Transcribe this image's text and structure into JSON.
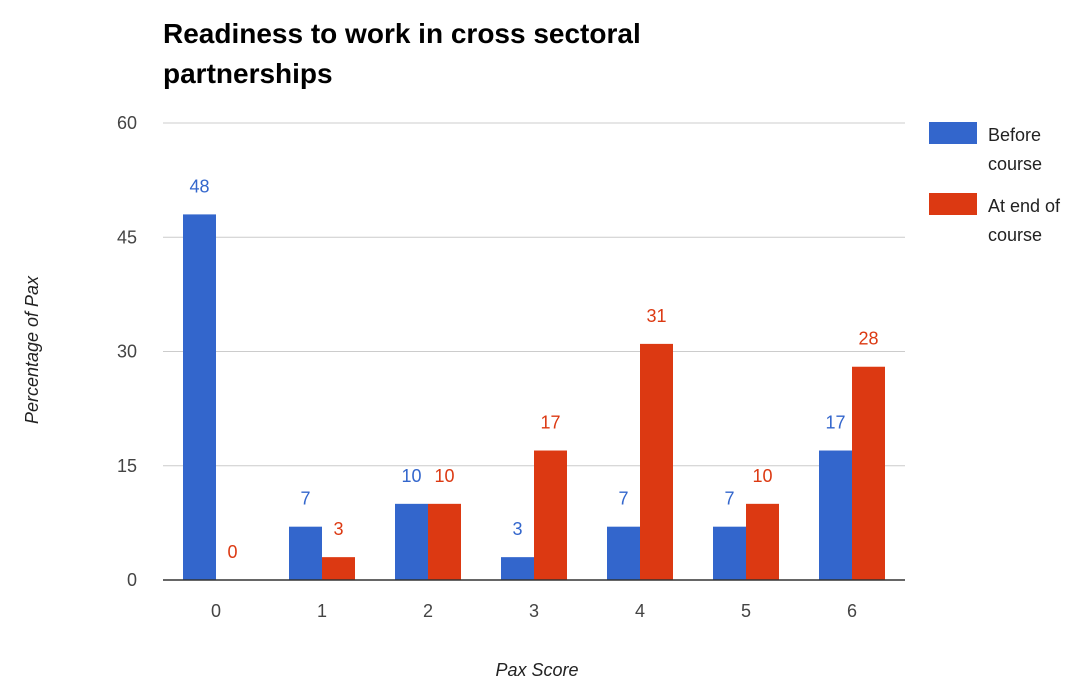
{
  "chart_data": {
    "type": "bar",
    "title_lines": [
      "Readiness to work in cross sectoral",
      "partnerships"
    ],
    "xlabel": "Pax Score",
    "ylabel": "Percentage of Pax",
    "categories": [
      "0",
      "1",
      "2",
      "3",
      "4",
      "5",
      "6"
    ],
    "ylim": [
      0,
      60
    ],
    "yticks": [
      0,
      15,
      30,
      45,
      60
    ],
    "grid": true,
    "legend_position": "right",
    "series": [
      {
        "name_lines": [
          "Before",
          "course"
        ],
        "color": "#3366cc",
        "values": [
          48,
          7,
          10,
          3,
          7,
          7,
          17
        ]
      },
      {
        "name_lines": [
          "At end of",
          "course"
        ],
        "color": "#dc3912",
        "values": [
          0,
          3,
          10,
          17,
          31,
          10,
          28
        ]
      }
    ]
  }
}
